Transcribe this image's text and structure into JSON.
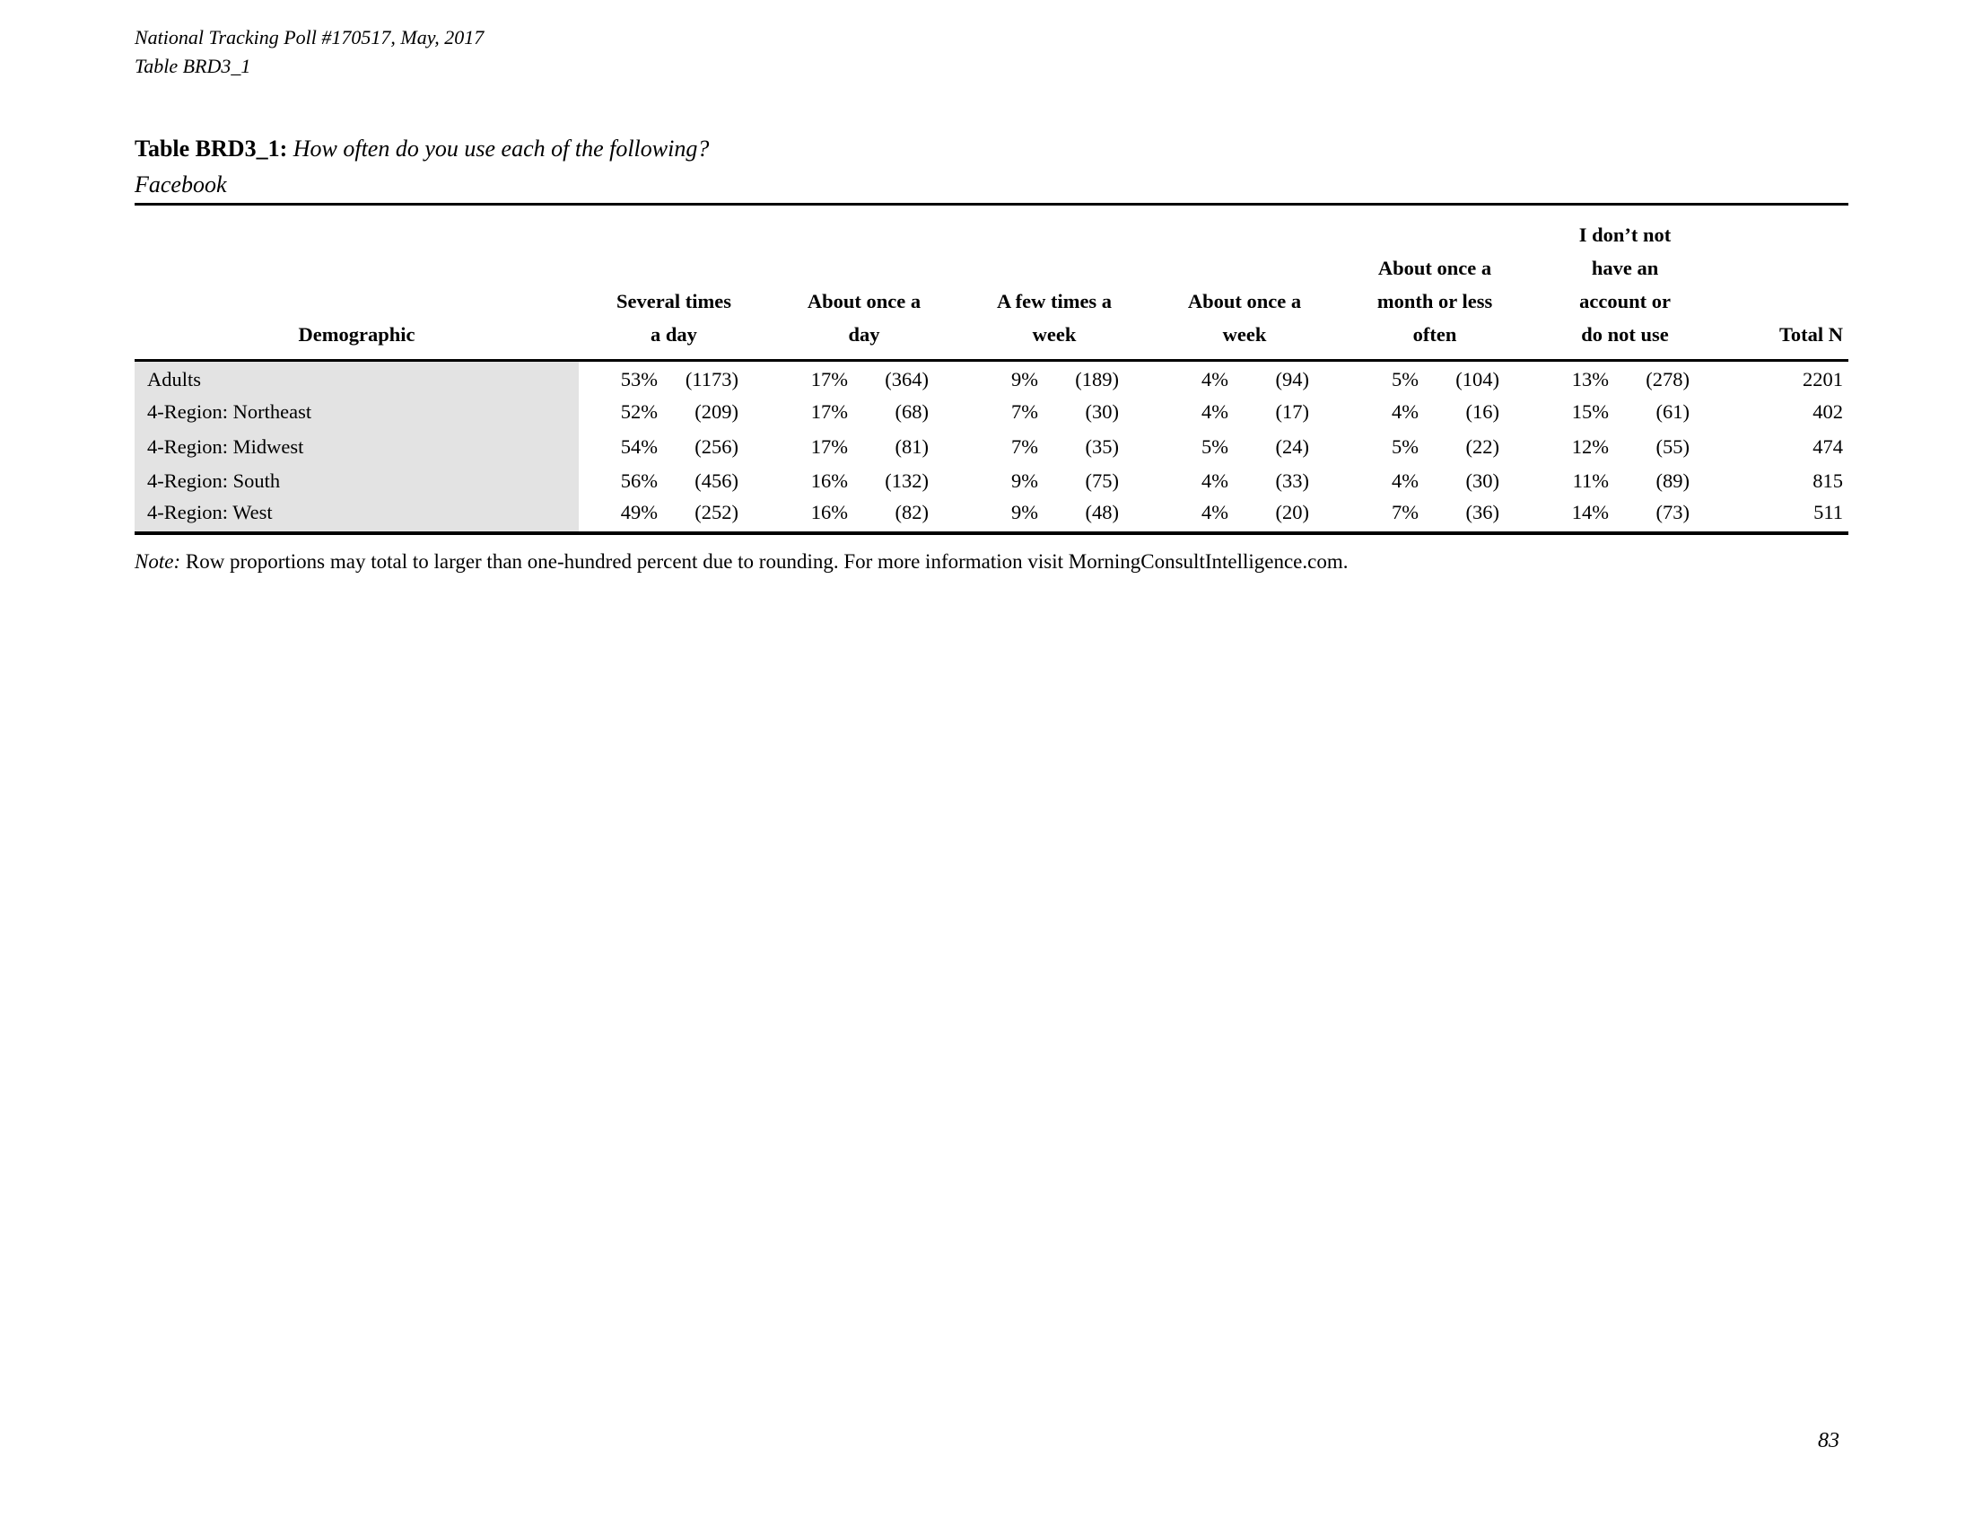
{
  "meta": {
    "poll_line": "National Tracking Poll #170517, May, 2017",
    "table_line": "Table BRD3_1",
    "page_number": "83"
  },
  "title": {
    "label": "Table BRD3_1:",
    "question": "How often do you use each of the following?",
    "subject": "Facebook"
  },
  "note": {
    "label": "Note:",
    "text": "Row proportions may total to larger than one-hundred percent due to rounding. For more information visit MorningConsultIntelligence.com."
  },
  "table": {
    "demographic_header": "Demographic",
    "total_header": "Total N",
    "columns": [
      {
        "lines": [
          "Several times",
          "a day"
        ]
      },
      {
        "lines": [
          "About once a",
          "day"
        ]
      },
      {
        "lines": [
          "A few times a",
          "week"
        ]
      },
      {
        "lines": [
          "About once a",
          "week"
        ]
      },
      {
        "lines": [
          "About once a",
          "month or less",
          "often"
        ]
      },
      {
        "lines": [
          "I don’t not",
          "have an",
          "account or",
          "do not use"
        ]
      }
    ],
    "rows": [
      {
        "demographic": "Adults",
        "cells": [
          [
            "53%",
            "(1173)"
          ],
          [
            "17%",
            "(364)"
          ],
          [
            "9%",
            "(189)"
          ],
          [
            "4%",
            "(94)"
          ],
          [
            "5%",
            "(104)"
          ],
          [
            "13%",
            "(278)"
          ]
        ],
        "total": "2201"
      },
      {
        "demographic": "4-Region: Northeast",
        "cells": [
          [
            "52%",
            "(209)"
          ],
          [
            "17%",
            "(68)"
          ],
          [
            "7%",
            "(30)"
          ],
          [
            "4%",
            "(17)"
          ],
          [
            "4%",
            "(16)"
          ],
          [
            "15%",
            "(61)"
          ]
        ],
        "total": "402"
      },
      {
        "demographic": "4-Region: Midwest",
        "cells": [
          [
            "54%",
            "(256)"
          ],
          [
            "17%",
            "(81)"
          ],
          [
            "7%",
            "(35)"
          ],
          [
            "5%",
            "(24)"
          ],
          [
            "5%",
            "(22)"
          ],
          [
            "12%",
            "(55)"
          ]
        ],
        "total": "474"
      },
      {
        "demographic": "4-Region: South",
        "cells": [
          [
            "56%",
            "(456)"
          ],
          [
            "16%",
            "(132)"
          ],
          [
            "9%",
            "(75)"
          ],
          [
            "4%",
            "(33)"
          ],
          [
            "4%",
            "(30)"
          ],
          [
            "11%",
            "(89)"
          ]
        ],
        "total": "815"
      },
      {
        "demographic": "4-Region: West",
        "cells": [
          [
            "49%",
            "(252)"
          ],
          [
            "16%",
            "(82)"
          ],
          [
            "9%",
            "(48)"
          ],
          [
            "4%",
            "(20)"
          ],
          [
            "7%",
            "(36)"
          ],
          [
            "14%",
            "(73)"
          ]
        ],
        "total": "511"
      }
    ]
  }
}
